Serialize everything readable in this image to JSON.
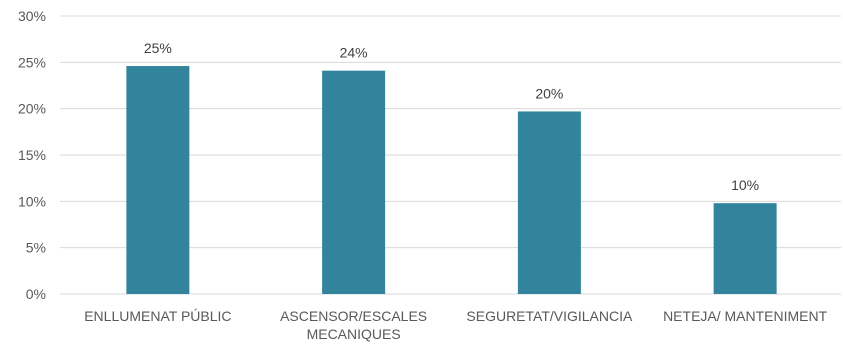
{
  "chart_data": {
    "type": "bar",
    "title": "",
    "xlabel": "",
    "ylabel": "",
    "categories": [
      [
        "ENLLUMENAT PÚBLIC"
      ],
      [
        "ASCENSOR/ESCALES",
        "MECANIQUES"
      ],
      [
        "SEGURETAT/VIGILANCIA"
      ],
      [
        "NETEJA/ MANTENIMENT"
      ]
    ],
    "values": [
      24.6,
      24.1,
      19.7,
      9.8
    ],
    "data_labels": [
      "25%",
      "24%",
      "20%",
      "10%"
    ],
    "ylim": [
      0,
      30
    ],
    "yticks": [
      0,
      5,
      10,
      15,
      20,
      25,
      30
    ],
    "ytick_labels": [
      "0%",
      "5%",
      "10%",
      "15%",
      "20%",
      "25%",
      "30%"
    ],
    "grid": "horizontal",
    "legend": "none",
    "bar_color": "#31849B",
    "grid_color": "#D9D9D9",
    "text_color": "#595959"
  }
}
